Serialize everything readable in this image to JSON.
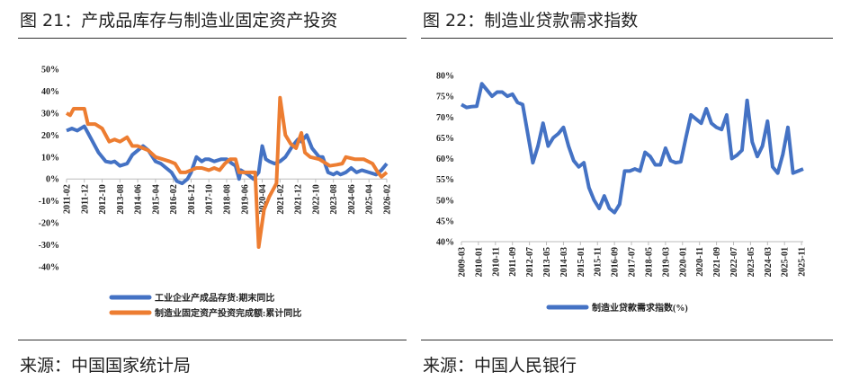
{
  "left": {
    "title": "图 21：产成品库存与制造业固定资产投资",
    "source": "来源：中国国家统计局"
  },
  "right": {
    "title": "图 22：制造业贷款需求指数",
    "source": "来源：中国人民银行"
  },
  "chart_data": [
    {
      "type": "line",
      "ylim": [
        -40,
        50
      ],
      "yticks": [
        "50%",
        "40%",
        "30%",
        "20%",
        "10%",
        "0%",
        "-10%",
        "-20%",
        "-30%",
        "-40%"
      ],
      "ytick_values": [
        50,
        40,
        30,
        20,
        10,
        0,
        -10,
        -20,
        -30,
        -40
      ],
      "xrange": [
        "2011-02",
        "2026-02"
      ],
      "xticks": [
        "2011-02",
        "2011-12",
        "2012-10",
        "2013-08",
        "2014-06",
        "2015-04",
        "2016-02",
        "2016-12",
        "2017-10",
        "2018-08",
        "2019-06",
        "2020-04",
        "2021-02",
        "2021-12",
        "2022-10",
        "2023-08",
        "2024-06",
        "2025-04",
        "2026-02"
      ],
      "legend": "bottom",
      "grid": false,
      "series": [
        {
          "name": "工业企业产成品存货:期末同比",
          "color": "#4472C4",
          "points": [
            [
              "2011-02",
              22
            ],
            [
              "2011-05",
              23
            ],
            [
              "2011-08",
              22
            ],
            [
              "2011-12",
              24
            ],
            [
              "2012-04",
              18
            ],
            [
              "2012-08",
              12
            ],
            [
              "2012-12",
              8
            ],
            [
              "2013-03",
              7.5
            ],
            [
              "2013-05",
              8
            ],
            [
              "2013-08",
              6
            ],
            [
              "2013-12",
              7
            ],
            [
              "2014-03",
              11
            ],
            [
              "2014-06",
              13
            ],
            [
              "2014-09",
              15
            ],
            [
              "2014-12",
              13
            ],
            [
              "2015-04",
              8
            ],
            [
              "2015-07",
              7
            ],
            [
              "2015-10",
              5
            ],
            [
              "2016-01",
              3
            ],
            [
              "2016-04",
              -1
            ],
            [
              "2016-07",
              -2
            ],
            [
              "2016-10",
              0
            ],
            [
              "2016-12",
              3
            ],
            [
              "2017-03",
              10
            ],
            [
              "2017-06",
              8
            ],
            [
              "2017-08",
              9
            ],
            [
              "2017-10",
              9
            ],
            [
              "2018-01",
              8
            ],
            [
              "2018-05",
              9
            ],
            [
              "2018-08",
              9
            ],
            [
              "2018-11",
              7
            ],
            [
              "2019-01",
              6
            ],
            [
              "2019-03",
              0
            ],
            [
              "2019-04",
              4
            ],
            [
              "2019-08",
              2
            ],
            [
              "2019-11",
              0
            ],
            [
              "2020-02",
              3
            ],
            [
              "2020-04",
              15
            ],
            [
              "2020-06",
              9
            ],
            [
              "2020-08",
              8
            ],
            [
              "2020-11",
              7
            ],
            [
              "2021-02",
              8
            ],
            [
              "2021-05",
              10
            ],
            [
              "2021-09",
              15
            ],
            [
              "2021-12",
              18
            ],
            [
              "2022-02",
              17
            ],
            [
              "2022-05",
              20
            ],
            [
              "2022-08",
              14
            ],
            [
              "2022-12",
              10
            ],
            [
              "2023-02",
              10
            ],
            [
              "2023-05",
              3
            ],
            [
              "2023-08",
              2
            ],
            [
              "2023-10",
              3
            ],
            [
              "2023-12",
              2
            ],
            [
              "2024-03",
              3
            ],
            [
              "2024-06",
              5
            ],
            [
              "2024-09",
              3
            ],
            [
              "2024-12",
              4
            ],
            [
              "2025-04",
              3
            ],
            [
              "2025-08",
              2
            ],
            [
              "2025-11",
              4
            ],
            [
              "2026-02",
              7
            ]
          ]
        },
        {
          "name": "制造业固定资产投资完成额:累计同比",
          "color": "#ED7D31",
          "points": [
            [
              "2011-02",
              30
            ],
            [
              "2011-04",
              29
            ],
            [
              "2011-06",
              32
            ],
            [
              "2011-09",
              32
            ],
            [
              "2011-12",
              32
            ],
            [
              "2012-02",
              25
            ],
            [
              "2012-06",
              25
            ],
            [
              "2012-10",
              23
            ],
            [
              "2013-02",
              17
            ],
            [
              "2013-05",
              18
            ],
            [
              "2013-08",
              17
            ],
            [
              "2013-12",
              19
            ],
            [
              "2014-03",
              15
            ],
            [
              "2014-06",
              15
            ],
            [
              "2014-09",
              14
            ],
            [
              "2014-12",
              13
            ],
            [
              "2015-04",
              10
            ],
            [
              "2015-08",
              9
            ],
            [
              "2015-12",
              8
            ],
            [
              "2016-03",
              7
            ],
            [
              "2016-06",
              3
            ],
            [
              "2016-09",
              3
            ],
            [
              "2016-12",
              4
            ],
            [
              "2017-03",
              5
            ],
            [
              "2017-06",
              5
            ],
            [
              "2017-10",
              4
            ],
            [
              "2018-01",
              5
            ],
            [
              "2018-04",
              4
            ],
            [
              "2018-07",
              7
            ],
            [
              "2018-10",
              9
            ],
            [
              "2019-01",
              9
            ],
            [
              "2019-03",
              3
            ],
            [
              "2019-07",
              3
            ],
            [
              "2019-12",
              3
            ],
            [
              "2020-02",
              -31
            ],
            [
              "2020-05",
              -14
            ],
            [
              "2020-08",
              -8
            ],
            [
              "2020-12",
              -2
            ],
            [
              "2021-02",
              37
            ],
            [
              "2021-05",
              20
            ],
            [
              "2021-08",
              16
            ],
            [
              "2021-11",
              14
            ],
            [
              "2022-02",
              21
            ],
            [
              "2022-04",
              12
            ],
            [
              "2022-07",
              10
            ],
            [
              "2022-12",
              9
            ],
            [
              "2023-04",
              7
            ],
            [
              "2023-06",
              6
            ],
            [
              "2023-10",
              6.5
            ],
            [
              "2024-01",
              7
            ],
            [
              "2024-03",
              10
            ],
            [
              "2024-08",
              9
            ],
            [
              "2025-01",
              9
            ],
            [
              "2025-06",
              7
            ],
            [
              "2025-09",
              3
            ],
            [
              "2025-11",
              1
            ],
            [
              "2026-02",
              3
            ]
          ]
        }
      ]
    },
    {
      "type": "line",
      "ylim": [
        40,
        80
      ],
      "yticks": [
        "80%",
        "75%",
        "70%",
        "65%",
        "60%",
        "55%",
        "50%",
        "45%",
        "40%"
      ],
      "ytick_values": [
        80,
        75,
        70,
        65,
        60,
        55,
        50,
        45,
        40
      ],
      "xrange": [
        "2009-03",
        "2025-12"
      ],
      "xticks": [
        "2009-03",
        "2010-01",
        "2010-11",
        "2011-09",
        "2012-07",
        "2013-05",
        "2014-03",
        "2015-01",
        "2015-11",
        "2016-09",
        "2017-07",
        "2018-05",
        "2019-03",
        "2020-01",
        "2020-11",
        "2021-09",
        "2022-07",
        "2023-05",
        "2024-03",
        "2025-01",
        "2025-11"
      ],
      "legend": "bottom",
      "grid": false,
      "start": "2009-03",
      "step_months": 3,
      "series": [
        {
          "name": "制造业贷款需求指数(%)",
          "color": "#4472C4",
          "values": [
            73,
            72.3,
            72.5,
            72.6,
            78,
            76.5,
            75,
            76,
            76,
            75,
            75.5,
            73.5,
            73,
            66,
            59,
            63,
            68.5,
            63,
            65,
            66,
            67.5,
            63,
            59.5,
            58,
            59,
            53,
            50,
            48,
            51,
            48,
            47,
            49,
            57,
            57,
            57.5,
            57,
            61.5,
            60.5,
            58.5,
            58.5,
            62.5,
            59.5,
            59,
            59.2,
            65,
            70.5,
            69.5,
            68.5,
            72,
            68.5,
            67.5,
            67,
            70.5,
            60,
            60.8,
            62,
            74,
            64,
            60.5,
            63,
            69,
            58,
            56.5,
            61,
            67.5,
            56.5,
            57,
            57.5
          ]
        }
      ]
    }
  ]
}
